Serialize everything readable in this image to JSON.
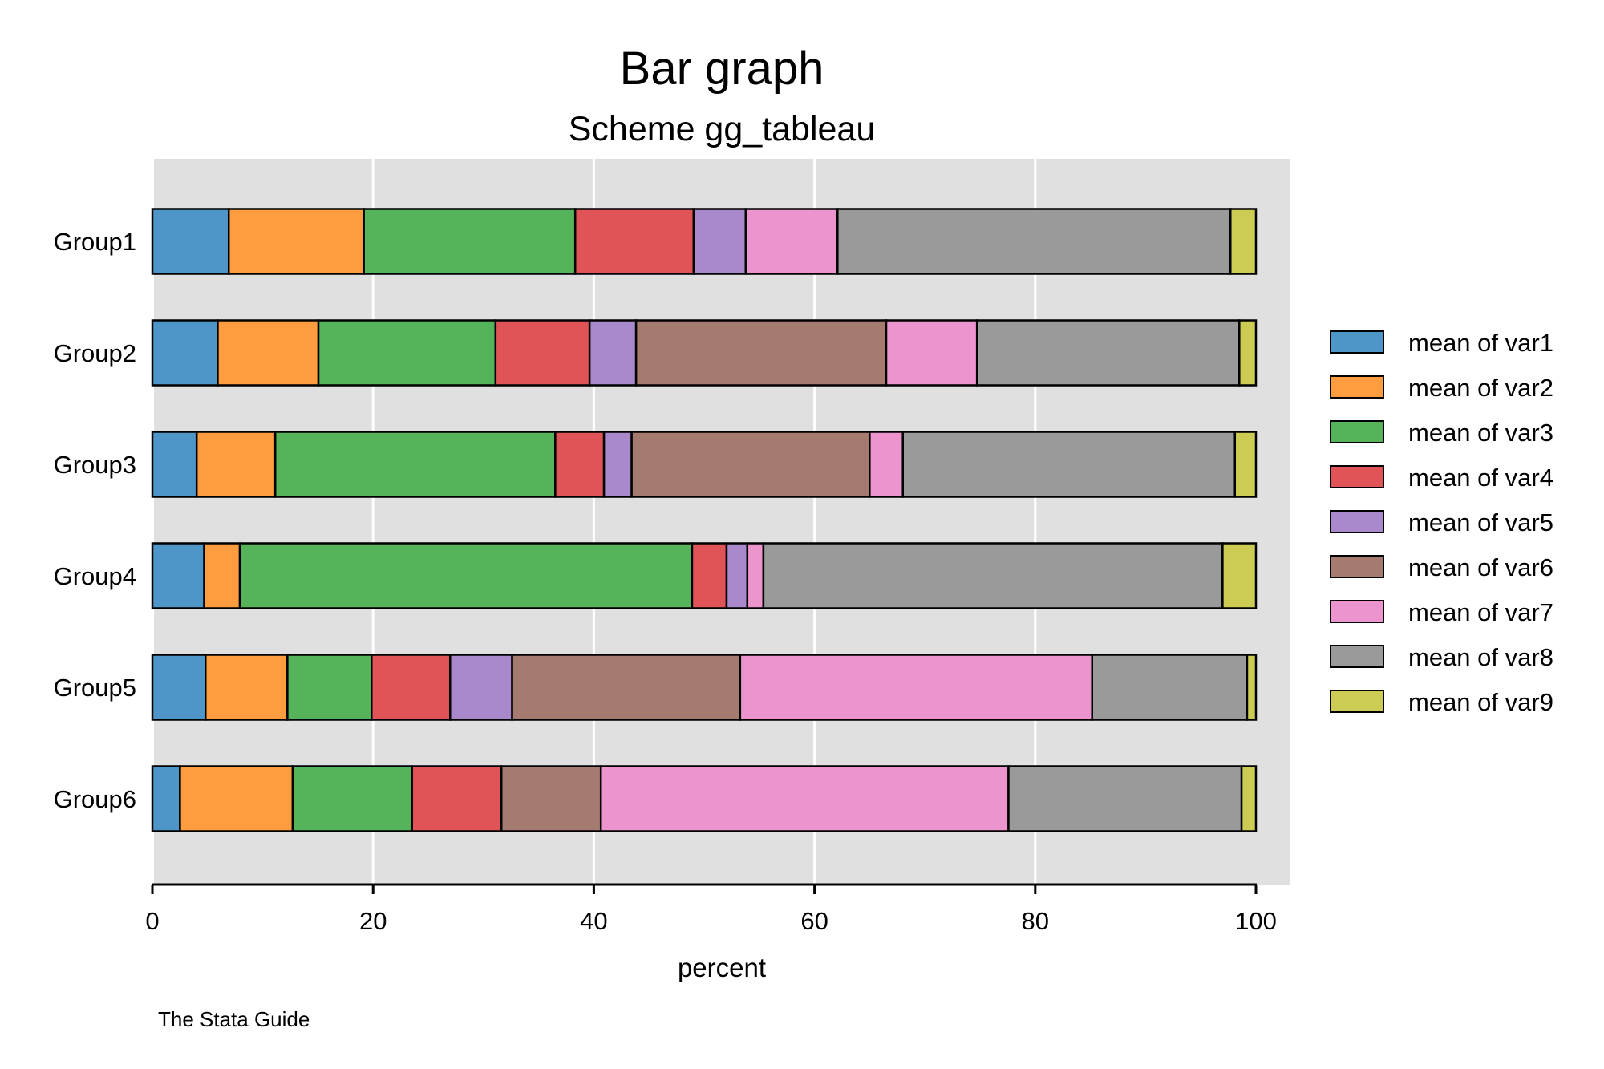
{
  "chart_data": {
    "type": "bar",
    "orientation": "horizontal",
    "stacked": true,
    "percent": true,
    "title": "Bar graph",
    "subtitle": "Scheme gg_tableau",
    "xlabel": "percent",
    "ylabel": "",
    "note": "The Stata Guide",
    "xlim": [
      0,
      100
    ],
    "xticks": [
      "0",
      "20",
      "40",
      "60",
      "80",
      "100"
    ],
    "grid": true,
    "legend_position": "right",
    "categories": [
      "Group1",
      "Group2",
      "Group3",
      "Group4",
      "Group5",
      "Group6"
    ],
    "series": [
      {
        "name": "mean of var1",
        "color": "#4e96c8",
        "values": [
          6.9,
          5.9,
          4.0,
          4.5,
          4.8,
          2.5
        ]
      },
      {
        "name": "mean of var2",
        "color": "#ff9c3f",
        "values": [
          12.2,
          9.1,
          7.1,
          3.1,
          7.4,
          10.2
        ]
      },
      {
        "name": "mean of var3",
        "color": "#55b45a",
        "values": [
          19.1,
          16.0,
          25.3,
          39.3,
          7.6,
          10.8
        ]
      },
      {
        "name": "mean of var4",
        "color": "#e05458",
        "values": [
          10.7,
          8.5,
          4.4,
          3.0,
          7.1,
          8.1
        ]
      },
      {
        "name": "mean of var5",
        "color": "#a988cc",
        "values": [
          4.7,
          4.2,
          2.5,
          1.8,
          5.6,
          0.0
        ]
      },
      {
        "name": "mean of var6",
        "color": "#a67b6f",
        "values": [
          0.0,
          22.6,
          21.5,
          0.0,
          20.6,
          9.0
        ]
      },
      {
        "name": "mean of var7",
        "color": "#ec94ce",
        "values": [
          8.3,
          8.2,
          3.0,
          1.4,
          31.8,
          36.9
        ]
      },
      {
        "name": "mean of var8",
        "color": "#9a9a9a",
        "values": [
          35.5,
          23.7,
          30.0,
          39.9,
          14.0,
          21.1
        ]
      },
      {
        "name": "mean of var9",
        "color": "#cccc55",
        "values": [
          2.3,
          1.5,
          1.9,
          2.9,
          0.8,
          1.3
        ]
      }
    ]
  }
}
